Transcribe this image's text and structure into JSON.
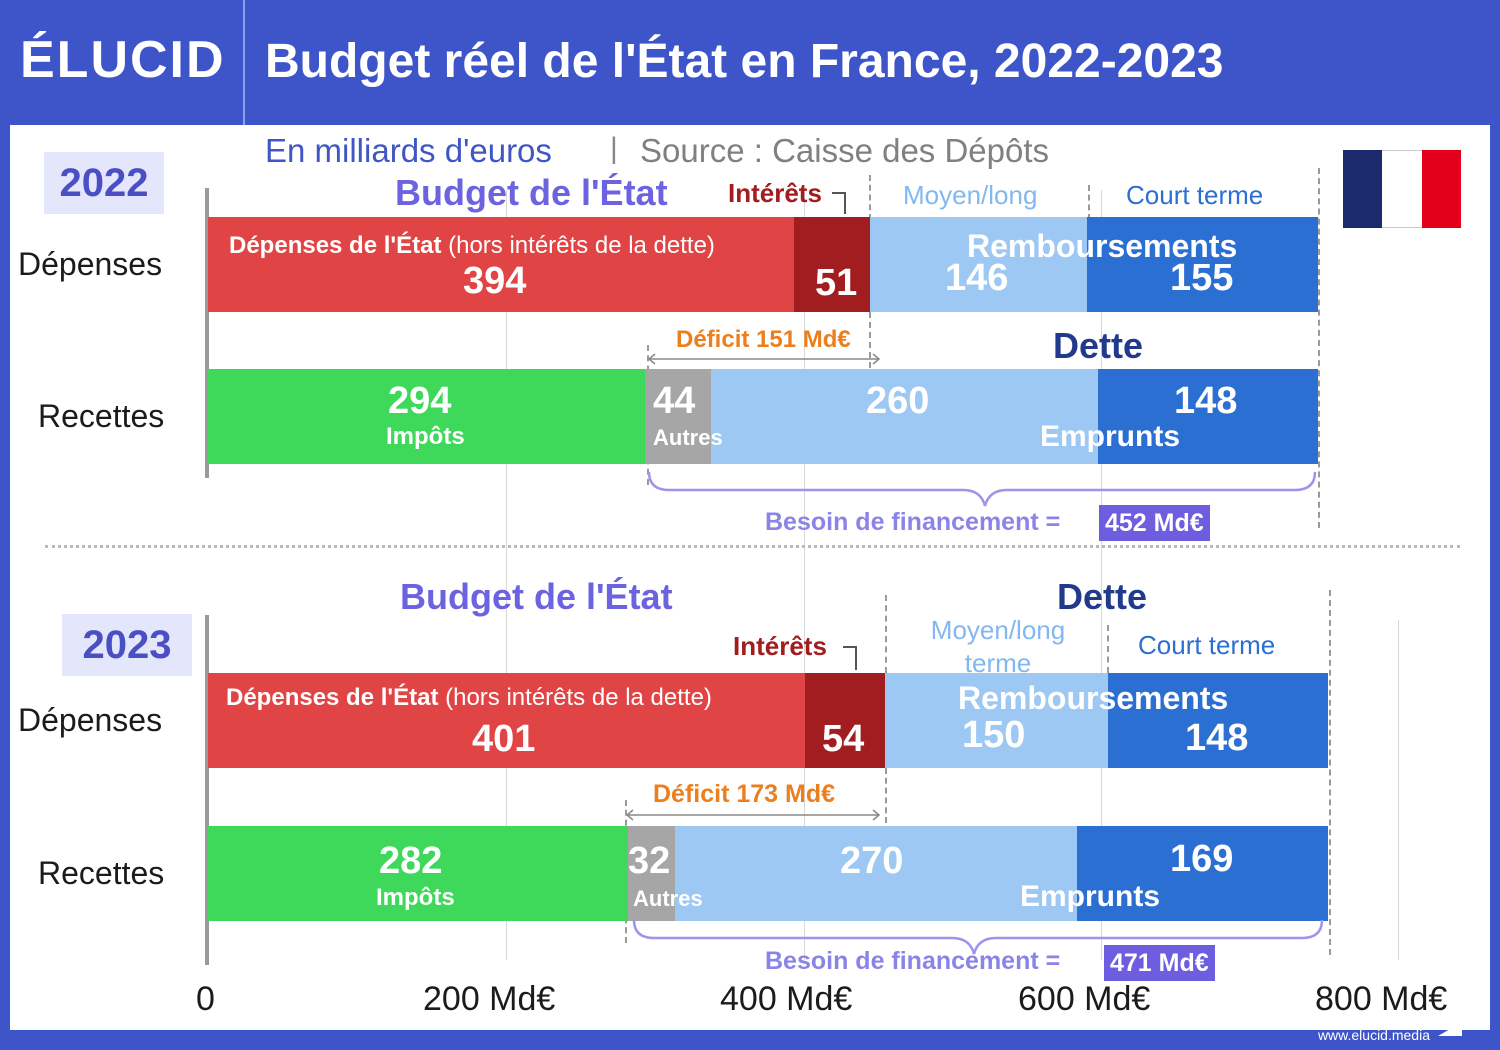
{
  "header": {
    "logo": "ÉLUCID",
    "title": "Budget réel de l'État en France, 2022-2023"
  },
  "subtitle": {
    "units": "En milliards d'euros",
    "sep": "|",
    "source": "Source : Caisse des Dépôts"
  },
  "footer": {
    "url": "www.elucid.media"
  },
  "labels": {
    "depenses": "Dépenses",
    "recettes": "Recettes",
    "budget": "Budget de l'État",
    "dette": "Dette",
    "interets": "Intérêts",
    "moyen_long": "Moyen/long",
    "moyen_long_2023": "Moyen/long terme",
    "court_terme": "Court terme",
    "remboursements": "Remboursements",
    "depenses_etat_bold": "Dépenses de l'État",
    "depenses_etat_paren": " (hors intérêts de la dette)",
    "impots": "Impôts",
    "autres": "Autres",
    "emprunts": "Emprunts",
    "besoin": "Besoin de financement ="
  },
  "colors": {
    "depenses": "#e04445",
    "interets": "#a11d1f",
    "moyen_long": "#9ec8f4",
    "court_terme": "#2b6fd3",
    "impots": "#3ed95a",
    "autres": "#a6a6a6",
    "dette_lt": "#9ec8f4",
    "emprunts": "#2b6fd3",
    "deficit_text": "#ec7f1d",
    "interets_text": "#a11d1f",
    "moyen_text": "#82b8ef",
    "court_text": "#2b6fd3"
  },
  "chart_data": {
    "type": "bar",
    "orientation": "horizontal-stacked",
    "unit": "Md€",
    "xlim": [
      0,
      800
    ],
    "xticks": [
      "0",
      "200 Md€",
      "400 Md€",
      "600 Md€",
      "800 Md€"
    ],
    "panels": [
      {
        "year": "2022",
        "deficit_label": "Déficit 151 Md€",
        "deficit": 151,
        "besoin_value": "452 Md€",
        "besoin": 452,
        "depenses": [
          {
            "name": "Dépenses de l'État (hors intérêts de la dette)",
            "value": 394,
            "label": "394"
          },
          {
            "name": "Intérêts",
            "value": 51,
            "label": "51"
          },
          {
            "name": "Remboursements Moyen/long",
            "value": 146,
            "label": "146"
          },
          {
            "name": "Remboursements Court terme",
            "value": 155,
            "label": "155"
          }
        ],
        "recettes": [
          {
            "name": "Impôts",
            "value": 294,
            "label": "294"
          },
          {
            "name": "Autres",
            "value": 44,
            "label": "44"
          },
          {
            "name": "Dette",
            "value": 260,
            "label": "260"
          },
          {
            "name": "Emprunts",
            "value": 148,
            "label": "148"
          }
        ]
      },
      {
        "year": "2023",
        "deficit_label": "Déficit 173 Md€",
        "deficit": 173,
        "besoin_value": "471 Md€",
        "besoin": 471,
        "depenses": [
          {
            "name": "Dépenses de l'État (hors intérêts de la dette)",
            "value": 401,
            "label": "401"
          },
          {
            "name": "Intérêts",
            "value": 54,
            "label": "54"
          },
          {
            "name": "Remboursements Moyen/long terme",
            "value": 150,
            "label": "150"
          },
          {
            "name": "Remboursements Court terme",
            "value": 148,
            "label": "148"
          }
        ],
        "recettes": [
          {
            "name": "Impôts",
            "value": 282,
            "label": "282"
          },
          {
            "name": "Autres",
            "value": 32,
            "label": "32"
          },
          {
            "name": "Dette",
            "value": 270,
            "label": "270"
          },
          {
            "name": "Emprunts",
            "value": 169,
            "label": "169"
          }
        ]
      }
    ]
  }
}
